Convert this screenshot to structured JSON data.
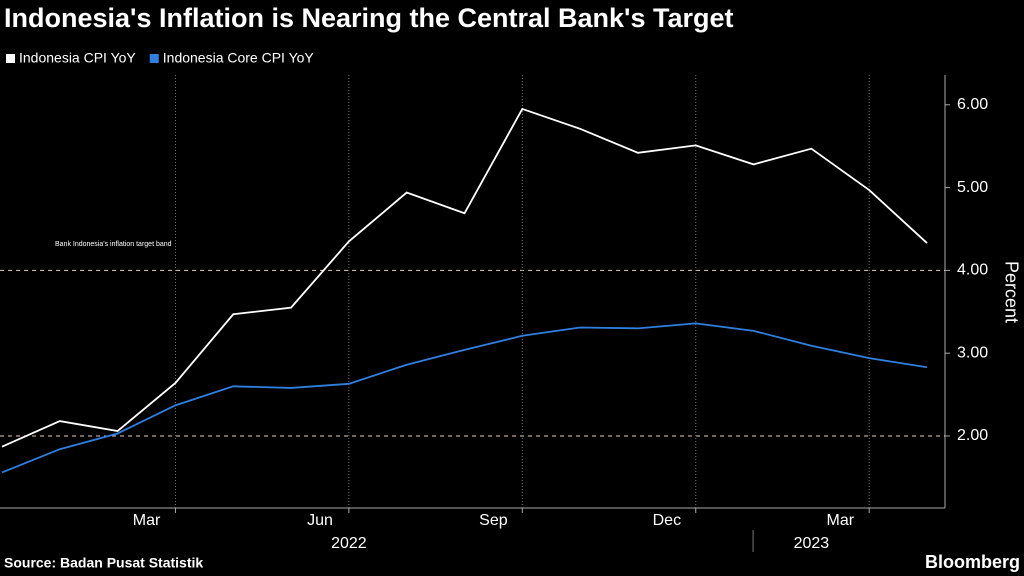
{
  "chart_data": {
    "type": "line",
    "title": "Indonesia's Inflation is Nearing the Central Bank's Target",
    "y_label": "Percent",
    "source": "Source: Badan Pusat Statistik",
    "brand": "Bloomberg",
    "annotation": "Bank Indonesia's inflation target band",
    "target_band": [
      2,
      4
    ],
    "categories": [
      null,
      null,
      null,
      "Mar",
      null,
      null,
      "Jun",
      null,
      null,
      "Sep",
      null,
      null,
      "Dec",
      null,
      null,
      "Mar",
      null
    ],
    "year_groups": [
      {
        "label": "2022",
        "start": 1,
        "end": 12
      },
      {
        "label": "2023",
        "start": 13,
        "end": 16
      }
    ],
    "series": [
      {
        "name": "Indonesia CPI YoY",
        "color": "#ffffff",
        "values": [
          1.87,
          2.18,
          2.06,
          2.64,
          3.47,
          3.55,
          4.35,
          4.94,
          4.69,
          5.95,
          5.71,
          5.42,
          5.51,
          5.28,
          5.47,
          4.97,
          4.33
        ]
      },
      {
        "name": "Indonesia Core CPI YoY",
        "color": "#2f7fe0",
        "values": [
          1.56,
          1.84,
          2.03,
          2.37,
          2.6,
          2.58,
          2.63,
          2.86,
          3.04,
          3.21,
          3.31,
          3.3,
          3.36,
          3.27,
          3.09,
          2.94,
          2.83
        ]
      }
    ],
    "ylim": [
      1.13,
      6.36
    ],
    "yticks": [
      {
        "value": 2,
        "label": "2.00"
      },
      {
        "value": 3,
        "label": "3.00"
      },
      {
        "value": 4,
        "label": "4.00"
      },
      {
        "value": 5,
        "label": "5.00"
      },
      {
        "value": 6,
        "label": "6.00"
      }
    ]
  }
}
